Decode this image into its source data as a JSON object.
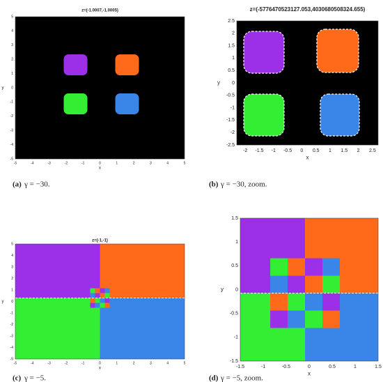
{
  "panels": [
    {
      "title": "z=(-1.0007,-1.0005)",
      "x_label": "x",
      "y_label": "y",
      "xticks": [
        -5,
        -4,
        -3,
        -2,
        -1,
        0,
        1,
        2,
        3,
        4,
        5
      ],
      "yticks": [
        5,
        4,
        3,
        2,
        1,
        0,
        -1,
        -2,
        -3,
        -4,
        -5
      ],
      "caption_label": "(a)",
      "caption_text": "γ = −30."
    },
    {
      "title": "z=(-5776470523127.053,4030680508324.655)",
      "x_label": "x",
      "y_label": "y",
      "xticks": [
        -2,
        -1.5,
        -1,
        -0.5,
        0,
        0.5,
        1,
        1.5,
        2,
        2.5
      ],
      "yticks": [
        2.5,
        2,
        1.5,
        1,
        0.5,
        0,
        -0.5,
        -1,
        -1.5,
        -2,
        -2.5
      ],
      "caption_label": "(b)",
      "caption_text": "γ = −30, zoom."
    },
    {
      "title": "z=(-1,-1)",
      "x_label": "x",
      "y_label": "y",
      "xticks": [
        -5,
        -4,
        -3,
        -2,
        -1,
        0,
        1,
        2,
        3,
        4,
        5
      ],
      "yticks": [
        5,
        4,
        3,
        2,
        1,
        0,
        -1,
        -2,
        -3,
        -4,
        -5
      ],
      "caption_label": "(c)",
      "caption_text": "γ = −5."
    },
    {
      "title": "",
      "x_label": "x",
      "y_label": "y",
      "xticks": [
        -1.5,
        -1,
        -0.5,
        0,
        0.5,
        1,
        1.5
      ],
      "yticks": [
        1.5,
        1,
        0.5,
        0,
        -0.5,
        -1,
        -1.5
      ],
      "caption_label": "(d)",
      "caption_text": "γ = −5, zoom."
    }
  ]
}
